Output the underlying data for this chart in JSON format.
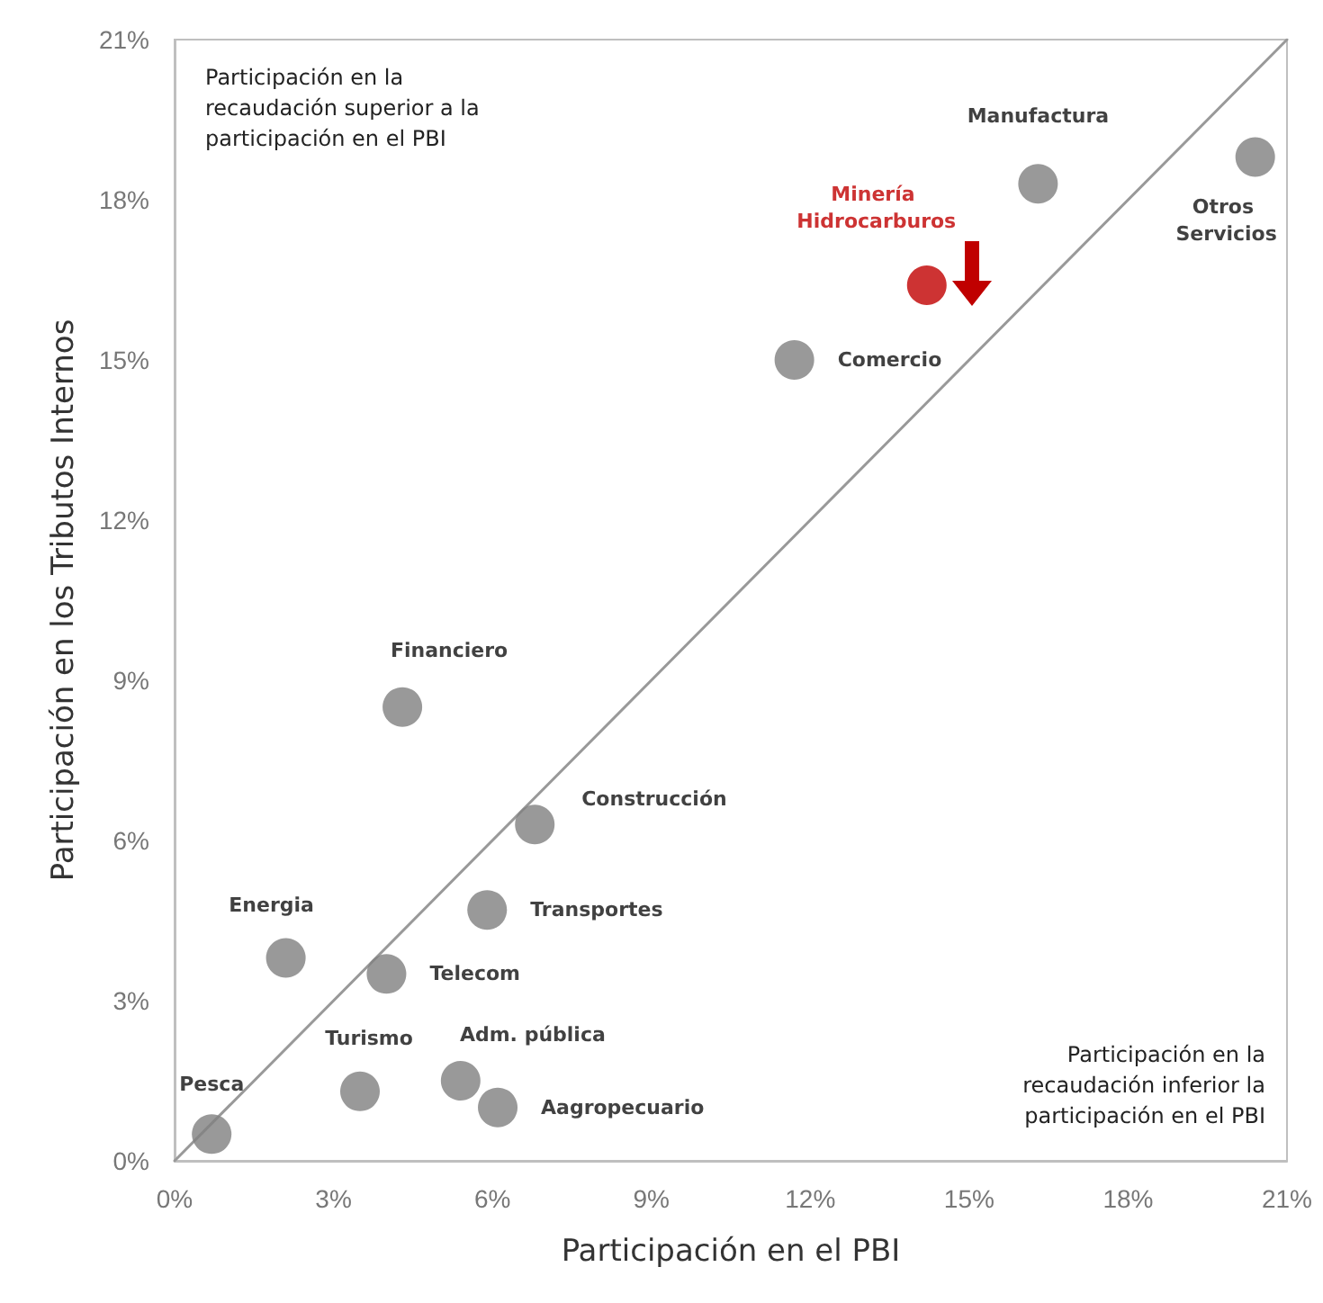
{
  "chart_data": {
    "type": "scatter",
    "xlabel": "Participación en el PBI",
    "ylabel": "Participación en los Tributos Internos",
    "xlim": [
      0,
      21
    ],
    "ylim": [
      0,
      21
    ],
    "xticks": [
      {
        "value": 0,
        "label": "0%"
      },
      {
        "value": 3,
        "label": "3%"
      },
      {
        "value": 6,
        "label": "6%"
      },
      {
        "value": 9,
        "label": "9%"
      },
      {
        "value": 12,
        "label": "12%"
      },
      {
        "value": 15,
        "label": "15%"
      },
      {
        "value": 18,
        "label": "18%"
      },
      {
        "value": 21,
        "label": "21%"
      }
    ],
    "yticks": [
      {
        "value": 0,
        "label": "0%"
      },
      {
        "value": 3,
        "label": "3%"
      },
      {
        "value": 6,
        "label": "6%"
      },
      {
        "value": 9,
        "label": "9%"
      },
      {
        "value": 12,
        "label": "12%"
      },
      {
        "value": 15,
        "label": "15%"
      },
      {
        "value": 18,
        "label": "18%"
      },
      {
        "value": 21,
        "label": "21%"
      }
    ],
    "grid": false,
    "legend": false,
    "marker": "circle",
    "annotations": [
      "Participación en la recaudación superior a la participación en el PBI",
      "Participación en la recaudación inferior la participación en el PBI"
    ],
    "series": [
      {
        "type": "line",
        "color": "#999999",
        "marker": "none",
        "x": [
          0,
          21
        ],
        "values": [
          0,
          21
        ]
      },
      {
        "name": "Pesca",
        "color": "#7f7f7f",
        "x": [
          0.7
        ],
        "values": [
          0.5
        ]
      },
      {
        "name": "Turismo",
        "color": "#7f7f7f",
        "x": [
          3.5
        ],
        "values": [
          1.3
        ]
      },
      {
        "name": "Adm. pública",
        "color": "#7f7f7f",
        "x": [
          5.4
        ],
        "values": [
          1.5
        ]
      },
      {
        "name": "Aagropecuario",
        "color": "#7f7f7f",
        "x": [
          6.1
        ],
        "values": [
          1.0
        ]
      },
      {
        "name": "Energia",
        "color": "#7f7f7f",
        "x": [
          2.1
        ],
        "values": [
          3.8
        ]
      },
      {
        "name": "Telecom",
        "color": "#7f7f7f",
        "x": [
          4.0
        ],
        "values": [
          3.5
        ]
      },
      {
        "name": "Transportes",
        "color": "#7f7f7f",
        "x": [
          5.9
        ],
        "values": [
          4.7
        ]
      },
      {
        "name": "Construcción",
        "color": "#7f7f7f",
        "x": [
          6.8
        ],
        "values": [
          6.3
        ]
      },
      {
        "name": "Financiero",
        "color": "#7f7f7f",
        "x": [
          4.3
        ],
        "values": [
          8.5
        ]
      },
      {
        "name": "Comercio",
        "color": "#7f7f7f",
        "x": [
          11.7
        ],
        "values": [
          15.0
        ]
      },
      {
        "name": "Minería Hidrocarburos",
        "color": "#c00000",
        "x": [
          14.2
        ],
        "values": [
          16.4
        ]
      },
      {
        "name": "Manufactura",
        "color": "#7f7f7f",
        "x": [
          16.3
        ],
        "values": [
          18.3
        ]
      },
      {
        "name": "Otros Servicios",
        "color": "#7f7f7f",
        "x": [
          20.4
        ],
        "values": [
          18.8
        ]
      }
    ]
  }
}
